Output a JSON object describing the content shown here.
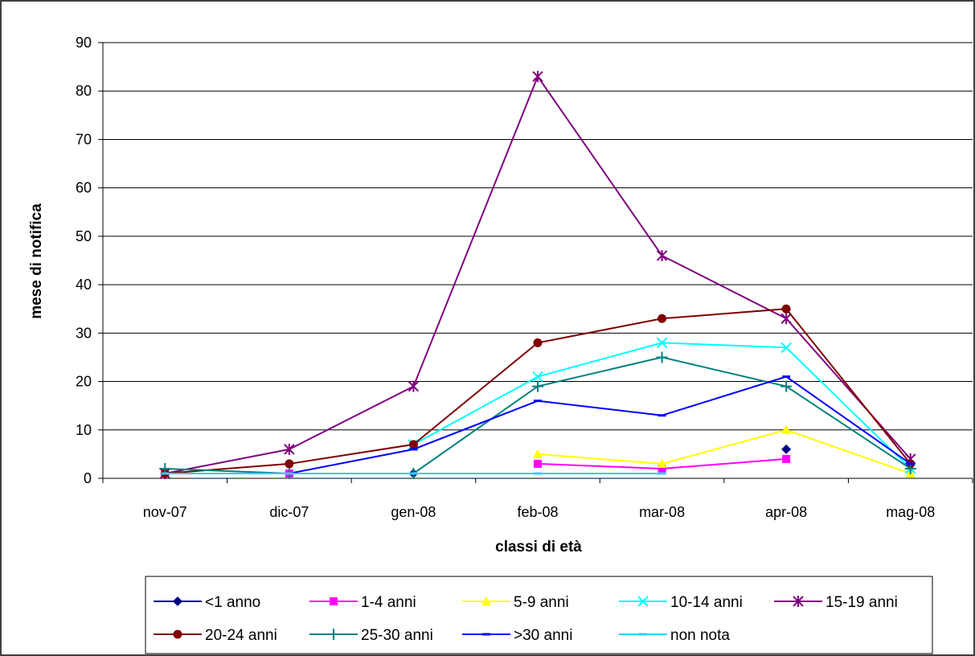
{
  "chart_data": {
    "type": "line",
    "title": "",
    "xlabel": "classi di età",
    "ylabel": "mese di notifica",
    "ylim": [
      0,
      90
    ],
    "ytick_step": 10,
    "grid": true,
    "legend_position": "bottom",
    "categories": [
      "nov-07",
      "dic-07",
      "gen-08",
      "feb-08",
      "mar-08",
      "apr-08",
      "mag-08"
    ],
    "series": [
      {
        "name": "<1 anno",
        "color": "#000080",
        "marker": "diamond",
        "values": [
          null,
          null,
          1,
          null,
          null,
          6,
          null
        ]
      },
      {
        "name": "1-4 anni",
        "color": "#FF00FF",
        "marker": "square",
        "values": [
          null,
          1,
          null,
          3,
          2,
          4,
          null
        ]
      },
      {
        "name": "5-9 anni",
        "color": "#FFFF00",
        "marker": "triangle",
        "values": [
          null,
          null,
          null,
          5,
          3,
          10,
          1
        ]
      },
      {
        "name": "10-14 anni",
        "color": "#00FFFF",
        "marker": "x",
        "values": [
          null,
          null,
          7,
          21,
          28,
          27,
          2
        ]
      },
      {
        "name": "15-19 anni",
        "color": "#800080",
        "marker": "star",
        "values": [
          1,
          6,
          19,
          83,
          46,
          33,
          4
        ]
      },
      {
        "name": "20-24 anni",
        "color": "#800000",
        "marker": "circle",
        "values": [
          1,
          3,
          7,
          28,
          33,
          35,
          3
        ]
      },
      {
        "name": "25-30 anni",
        "color": "#008080",
        "marker": "plus",
        "values": [
          2,
          1,
          1,
          19,
          25,
          19,
          2
        ]
      },
      {
        "name": ">30 anni",
        "color": "#0000FF",
        "marker": "dash",
        "values": [
          null,
          1,
          6,
          16,
          13,
          21,
          3
        ]
      },
      {
        "name": "non nota",
        "color": "#33CCFF",
        "marker": "dash",
        "values": [
          1,
          1,
          1,
          1,
          1,
          null,
          null
        ]
      }
    ]
  }
}
